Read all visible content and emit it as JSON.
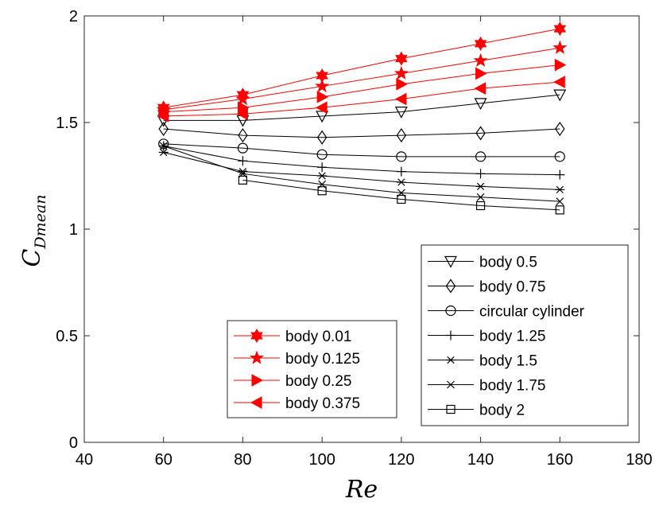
{
  "chart_data": {
    "type": "line",
    "xlabel": "Re",
    "ylabel_main": "C",
    "ylabel_sub": "Dmean",
    "xlim": [
      40,
      180
    ],
    "ylim": [
      0,
      2
    ],
    "xticks": [
      "40",
      "60",
      "80",
      "100",
      "120",
      "140",
      "160",
      "180"
    ],
    "yticks": [
      "0",
      "0.5",
      "1",
      "1.5",
      "2"
    ],
    "grid": false,
    "x": [
      60,
      80,
      100,
      120,
      140,
      160
    ],
    "series": [
      {
        "name": "body 0.01",
        "color": "#ff0000",
        "marker": "hexagram",
        "legend": "left",
        "values": [
          1.57,
          1.63,
          1.72,
          1.8,
          1.87,
          1.94
        ]
      },
      {
        "name": "body 0.125",
        "color": "#ff0000",
        "marker": "pentagram",
        "legend": "left",
        "values": [
          1.56,
          1.61,
          1.67,
          1.73,
          1.79,
          1.85
        ]
      },
      {
        "name": "body 0.25",
        "color": "#ff0000",
        "marker": "triangle-right",
        "legend": "left",
        "values": [
          1.55,
          1.57,
          1.62,
          1.68,
          1.73,
          1.77
        ]
      },
      {
        "name": "body 0.375",
        "color": "#ff0000",
        "marker": "triangle-left",
        "legend": "left",
        "values": [
          1.53,
          1.54,
          1.57,
          1.61,
          1.66,
          1.69
        ]
      },
      {
        "name": "body 0.5",
        "color": "#000000",
        "marker": "triangle-down",
        "legend": "right",
        "values": [
          1.51,
          1.51,
          1.53,
          1.55,
          1.59,
          1.63
        ]
      },
      {
        "name": "body 0.75",
        "color": "#000000",
        "marker": "diamond",
        "legend": "right",
        "values": [
          1.47,
          1.44,
          1.43,
          1.44,
          1.45,
          1.47
        ]
      },
      {
        "name": "circular cylinder",
        "color": "#000000",
        "marker": "circle",
        "legend": "right",
        "values": [
          1.4,
          1.38,
          1.35,
          1.34,
          1.34,
          1.34
        ]
      },
      {
        "name": "body 1.25",
        "color": "#000000",
        "marker": "plus",
        "legend": "right",
        "values": [
          1.39,
          1.32,
          1.29,
          1.27,
          1.26,
          1.255
        ]
      },
      {
        "name": "body 1.5",
        "color": "#000000",
        "marker": "asterisk",
        "legend": "right",
        "values": [
          1.36,
          1.27,
          1.25,
          1.22,
          1.2,
          1.185
        ]
      },
      {
        "name": "body 1.75",
        "color": "#000000",
        "marker": "cross",
        "legend": "right",
        "values": [
          1.39,
          1.26,
          1.21,
          1.17,
          1.15,
          1.13
        ]
      },
      {
        "name": "body 2",
        "color": "#000000",
        "marker": "square",
        "legend": "right",
        "values": [
          null,
          1.23,
          1.18,
          1.14,
          1.11,
          1.09
        ]
      }
    ]
  }
}
